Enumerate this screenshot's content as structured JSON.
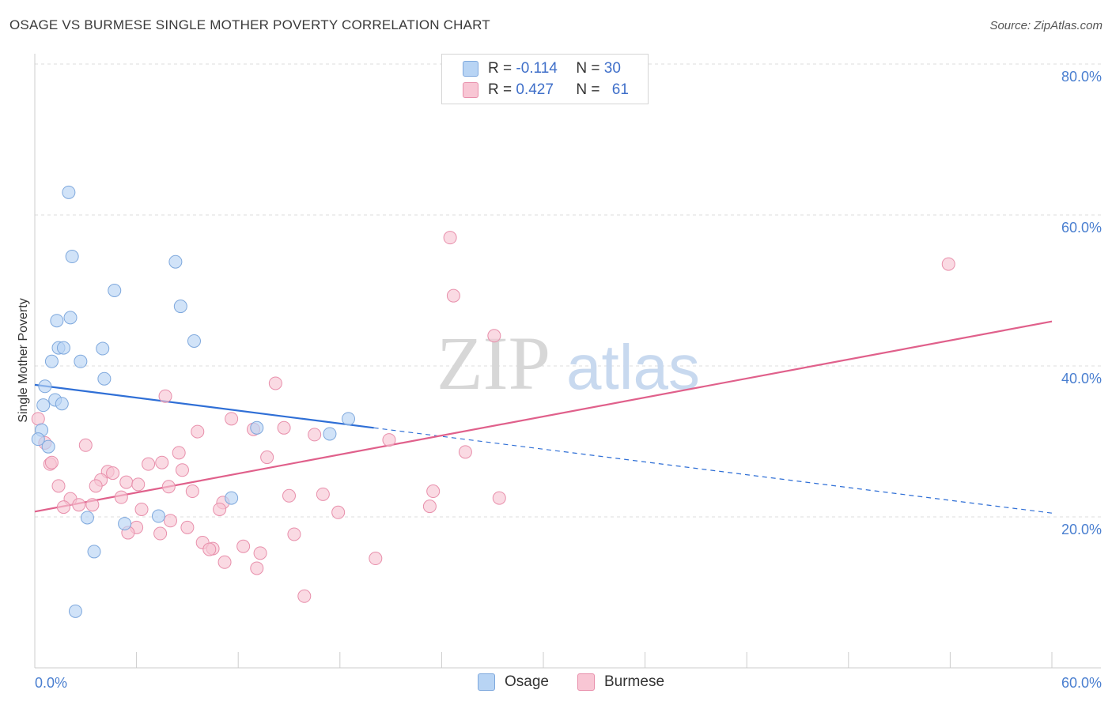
{
  "title": "OSAGE VS BURMESE SINGLE MOTHER POVERTY CORRELATION CHART",
  "source": "Source: ZipAtlas.com",
  "watermark": {
    "zip": "ZIP",
    "atlas": "atlas"
  },
  "legend": {
    "rows": [
      {
        "r_label": "R = ",
        "r_value": "-0.114",
        "n_label": "N = ",
        "n_value": "30",
        "color": "#b8d4f4",
        "border": "#7ea8dd"
      },
      {
        "r_label": "R = ",
        "r_value": "0.427",
        "n_label": "N = ",
        "n_value": "61",
        "color": "#f8c6d4",
        "border": "#e88fab"
      }
    ]
  },
  "bottom_legend": [
    {
      "label": "Osage",
      "color": "#b8d4f4",
      "border": "#7ea8dd"
    },
    {
      "label": "Burmese",
      "color": "#f8c6d4",
      "border": "#e88fab"
    }
  ],
  "chart_data": {
    "type": "scatter",
    "title": "OSAGE VS BURMESE SINGLE MOTHER POVERTY CORRELATION CHART",
    "xlabel": "",
    "ylabel": "Single Mother Poverty",
    "xlim": [
      0,
      60
    ],
    "ylim": [
      0,
      82
    ],
    "x_tick_labels": [
      "0.0%",
      "60.0%"
    ],
    "y_ticks": [
      20,
      40,
      60,
      80
    ],
    "y_tick_labels": [
      "20.0%",
      "40.0%",
      "60.0%",
      "80.0%"
    ],
    "series": [
      {
        "name": "Osage",
        "color": "#7ea8dd",
        "fill": "#b8d4f4",
        "trend_color": "#2f6fd6",
        "trend": {
          "x_start": 0,
          "y_start": 37.5,
          "x_solid_end": 20,
          "y_solid_end": 31.8,
          "x_end": 60,
          "y_end": 20.5
        },
        "points": [
          [
            2.0,
            63.0
          ],
          [
            2.2,
            54.5
          ],
          [
            4.7,
            50.0
          ],
          [
            8.3,
            53.8
          ],
          [
            8.6,
            47.9
          ],
          [
            2.1,
            46.4
          ],
          [
            1.3,
            46.0
          ],
          [
            1.4,
            42.4
          ],
          [
            1.7,
            42.4
          ],
          [
            4.0,
            42.3
          ],
          [
            9.4,
            43.3
          ],
          [
            1.0,
            40.6
          ],
          [
            2.7,
            40.6
          ],
          [
            4.1,
            38.3
          ],
          [
            0.6,
            37.3
          ],
          [
            1.2,
            35.5
          ],
          [
            1.6,
            35.0
          ],
          [
            0.5,
            34.8
          ],
          [
            18.5,
            33.0
          ],
          [
            13.1,
            31.8
          ],
          [
            17.4,
            31.0
          ],
          [
            0.4,
            31.5
          ],
          [
            0.2,
            30.3
          ],
          [
            0.8,
            29.3
          ],
          [
            11.6,
            22.5
          ],
          [
            3.1,
            19.9
          ],
          [
            7.3,
            20.1
          ],
          [
            5.3,
            19.1
          ],
          [
            3.5,
            15.4
          ],
          [
            2.4,
            7.5
          ]
        ]
      },
      {
        "name": "Burmese",
        "color": "#e88fab",
        "fill": "#f8c6d4",
        "trend_color": "#e0608b",
        "trend": {
          "x_start": 0,
          "y_start": 20.7,
          "x_end": 60,
          "y_end": 45.9
        },
        "points": [
          [
            0.2,
            33.0
          ],
          [
            0.6,
            29.8
          ],
          [
            0.9,
            27.0
          ],
          [
            1.0,
            27.2
          ],
          [
            24.5,
            57.0
          ],
          [
            24.7,
            49.3
          ],
          [
            27.1,
            44.0
          ],
          [
            53.9,
            53.5
          ],
          [
            14.2,
            37.7
          ],
          [
            7.7,
            36.0
          ],
          [
            11.6,
            33.0
          ],
          [
            12.9,
            31.6
          ],
          [
            14.7,
            31.8
          ],
          [
            9.6,
            31.3
          ],
          [
            16.5,
            30.9
          ],
          [
            20.9,
            30.2
          ],
          [
            3.0,
            29.5
          ],
          [
            8.5,
            28.5
          ],
          [
            25.4,
            28.6
          ],
          [
            13.7,
            27.9
          ],
          [
            6.7,
            27.0
          ],
          [
            7.5,
            27.2
          ],
          [
            8.7,
            26.2
          ],
          [
            4.3,
            26.0
          ],
          [
            4.6,
            25.8
          ],
          [
            3.9,
            24.9
          ],
          [
            5.4,
            24.6
          ],
          [
            6.1,
            24.3
          ],
          [
            1.4,
            24.1
          ],
          [
            3.6,
            24.1
          ],
          [
            7.9,
            24.0
          ],
          [
            9.3,
            23.4
          ],
          [
            23.5,
            23.4
          ],
          [
            17.0,
            23.0
          ],
          [
            15.0,
            22.8
          ],
          [
            5.1,
            22.6
          ],
          [
            27.4,
            22.5
          ],
          [
            2.1,
            22.4
          ],
          [
            11.1,
            21.9
          ],
          [
            2.6,
            21.6
          ],
          [
            3.4,
            21.6
          ],
          [
            1.7,
            21.3
          ],
          [
            23.3,
            21.4
          ],
          [
            10.9,
            21.0
          ],
          [
            6.3,
            21.0
          ],
          [
            17.9,
            20.6
          ],
          [
            6.0,
            18.6
          ],
          [
            9.0,
            18.6
          ],
          [
            5.5,
            17.9
          ],
          [
            7.4,
            17.8
          ],
          [
            15.3,
            17.7
          ],
          [
            9.9,
            16.6
          ],
          [
            12.3,
            16.1
          ],
          [
            10.5,
            15.8
          ],
          [
            10.3,
            15.7
          ],
          [
            13.3,
            15.2
          ],
          [
            20.1,
            14.5
          ],
          [
            11.2,
            14.0
          ],
          [
            13.1,
            13.2
          ],
          [
            15.9,
            9.5
          ],
          [
            8.0,
            19.5
          ]
        ]
      }
    ]
  }
}
